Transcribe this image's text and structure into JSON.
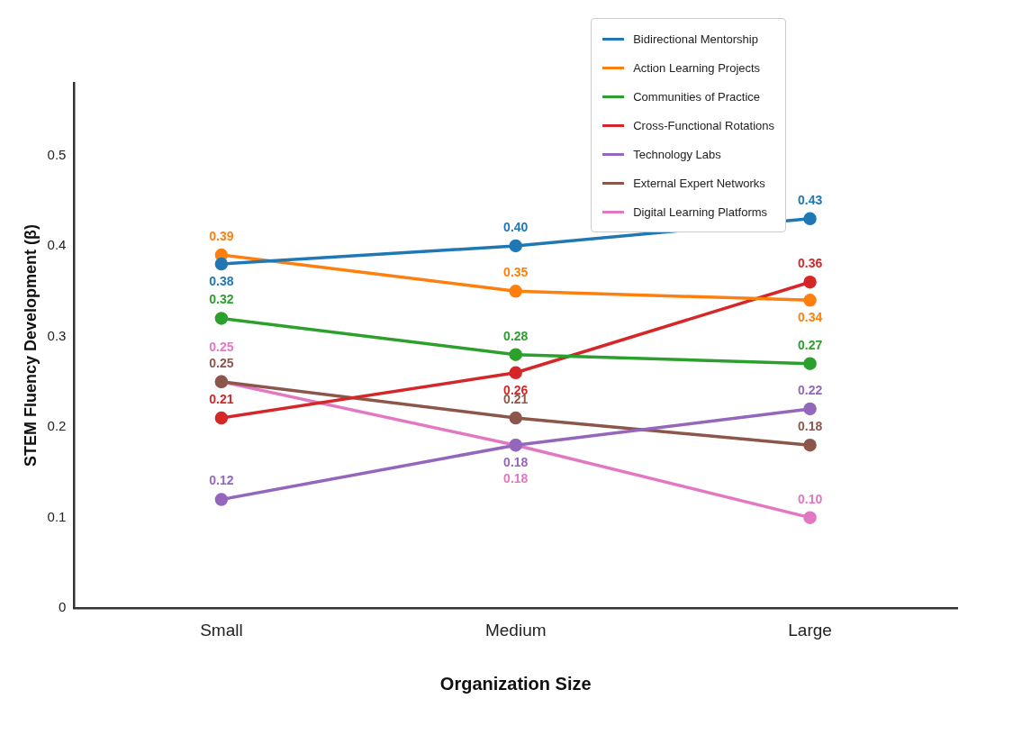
{
  "chart_data": {
    "type": "line",
    "xlabel": "Organization Size",
    "ylabel": "STEM Fluency Development (β)",
    "categories": [
      "Small",
      "Medium",
      "Large"
    ],
    "series": [
      {
        "name": "Bidirectional Mentorship",
        "color": "#1f77b4",
        "values": [
          0.38,
          0.4,
          0.43
        ],
        "value_labels": [
          "0.38",
          "0.40",
          "0.43"
        ]
      },
      {
        "name": "Action Learning Projects",
        "color": "#ff7f0e",
        "values": [
          0.39,
          0.35,
          0.34
        ],
        "value_labels": [
          "0.39",
          "0.35",
          "0.34"
        ]
      },
      {
        "name": "Communities of Practice",
        "color": "#2ca02c",
        "values": [
          0.32,
          0.28,
          0.27
        ],
        "value_labels": [
          "0.32",
          "0.28",
          "0.27"
        ]
      },
      {
        "name": "Cross-Functional Rotations",
        "color": "#d62728",
        "values": [
          0.21,
          0.26,
          0.36
        ],
        "value_labels": [
          "0.21",
          "0.26",
          "0.36"
        ]
      },
      {
        "name": "Technology Labs",
        "color": "#9467bd",
        "values": [
          0.12,
          0.18,
          0.22
        ],
        "value_labels": [
          "0.12",
          "0.18",
          "0.22"
        ]
      },
      {
        "name": "External Expert Networks",
        "color": "#8c564b",
        "values": [
          0.25,
          0.21,
          0.18
        ],
        "value_labels": [
          "0.25",
          "0.21",
          "0.18"
        ]
      },
      {
        "name": "Digital Learning Platforms",
        "color": "#e377c2",
        "values": [
          0.25,
          0.18,
          0.1
        ],
        "value_labels": [
          "0.25",
          "0.18",
          "0.10"
        ]
      }
    ],
    "ylim": [
      0,
      0.58
    ],
    "yticks": [
      0,
      0.1,
      0.2,
      0.3,
      0.4,
      0.5
    ],
    "grid": false,
    "legend": "top right",
    "marker": "circle",
    "line_style": "solid"
  }
}
